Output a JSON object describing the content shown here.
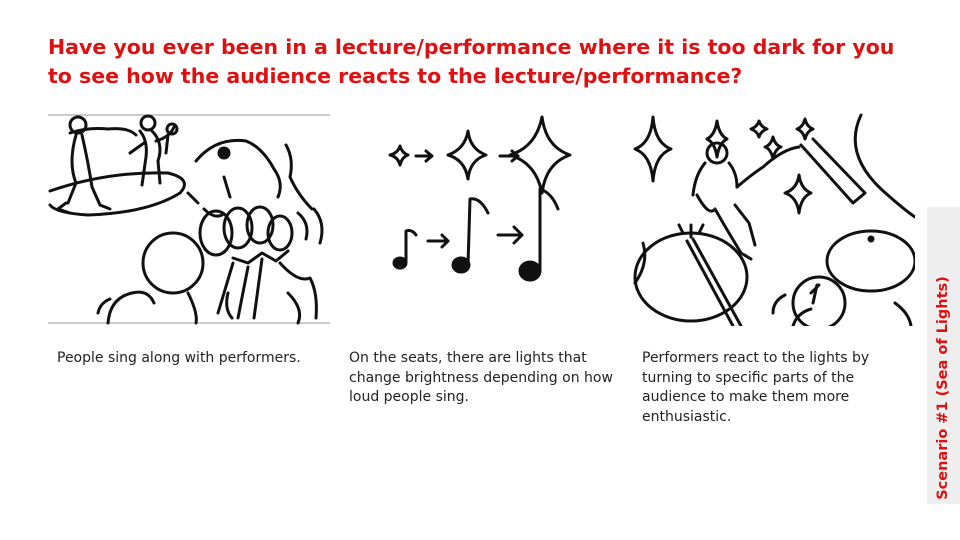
{
  "slide": {
    "title": "Have you ever been in a lecture/performance where it is too dark for you to see how the audience reacts to the lecture/performance?",
    "side_label": "Scenario #1 (Sea of Lights)",
    "accent_color": "#dd1111"
  },
  "panels": [
    {
      "caption": "People sing along with performers.",
      "sketch": "performers-and-audience-sketch"
    },
    {
      "caption": "On the seats, there are lights that change brightness depending on how loud people sing.",
      "sketch": "lights-and-notes-sketch"
    },
    {
      "caption": "Performers react to the lights by turning to specific parts of the audience to make them more enthusiastic.",
      "sketch": "performer-pointing-sketch"
    }
  ]
}
